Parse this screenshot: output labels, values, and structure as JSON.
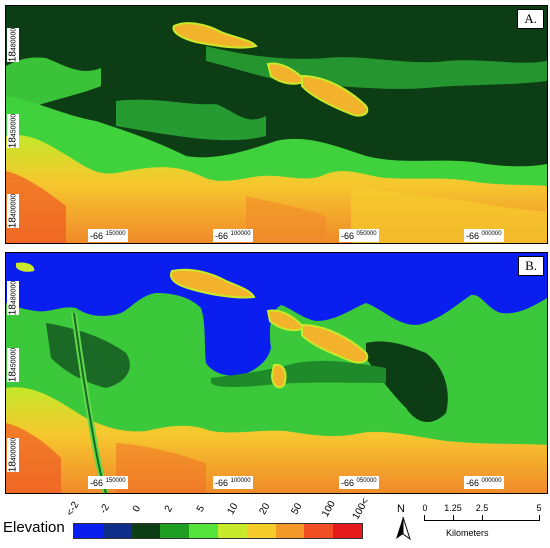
{
  "panels": [
    {
      "label": "A.",
      "lat_labels": [
        {
          "deg": "18",
          "min": "480000"
        },
        {
          "deg": "18",
          "min": "450000"
        },
        {
          "deg": "18",
          "min": "400000"
        }
      ],
      "lon_labels": [
        {
          "deg": "-66",
          "min": "150000"
        },
        {
          "deg": "-66",
          "min": "100000"
        },
        {
          "deg": "-66",
          "min": "050000"
        },
        {
          "deg": "-66",
          "min": "000000"
        }
      ]
    },
    {
      "label": "B.",
      "lat_labels": [
        {
          "deg": "18",
          "min": "480000"
        },
        {
          "deg": "18",
          "min": "450000"
        },
        {
          "deg": "18",
          "min": "400000"
        }
      ],
      "lon_labels": [
        {
          "deg": "-66",
          "min": "150000"
        },
        {
          "deg": "-66",
          "min": "100000"
        },
        {
          "deg": "-66",
          "min": "050000"
        },
        {
          "deg": "-66",
          "min": "000000"
        }
      ]
    }
  ],
  "legend": {
    "title": "Elevation",
    "ticks": [
      "<-2",
      "-2",
      "0",
      "2",
      "5",
      "10",
      "20",
      "50",
      "100",
      "100<"
    ],
    "colors": [
      "#0a1ef0",
      "#0e2e8a",
      "#0d3d14",
      "#1f9e24",
      "#54e43c",
      "#c7ea2a",
      "#f5cc2c",
      "#f49a2a",
      "#ef4f22",
      "#e61a1a"
    ]
  },
  "north": {
    "label": "N"
  },
  "scale_bar": {
    "ticks": [
      "0",
      "1.25",
      "2.5",
      "5"
    ],
    "unit": "Kilometers"
  },
  "colors": {
    "ocean": "#0a1ef0",
    "wetland": "#0d3d14",
    "lowland": "#33c43a",
    "hill_orange": "#f4a42a"
  }
}
